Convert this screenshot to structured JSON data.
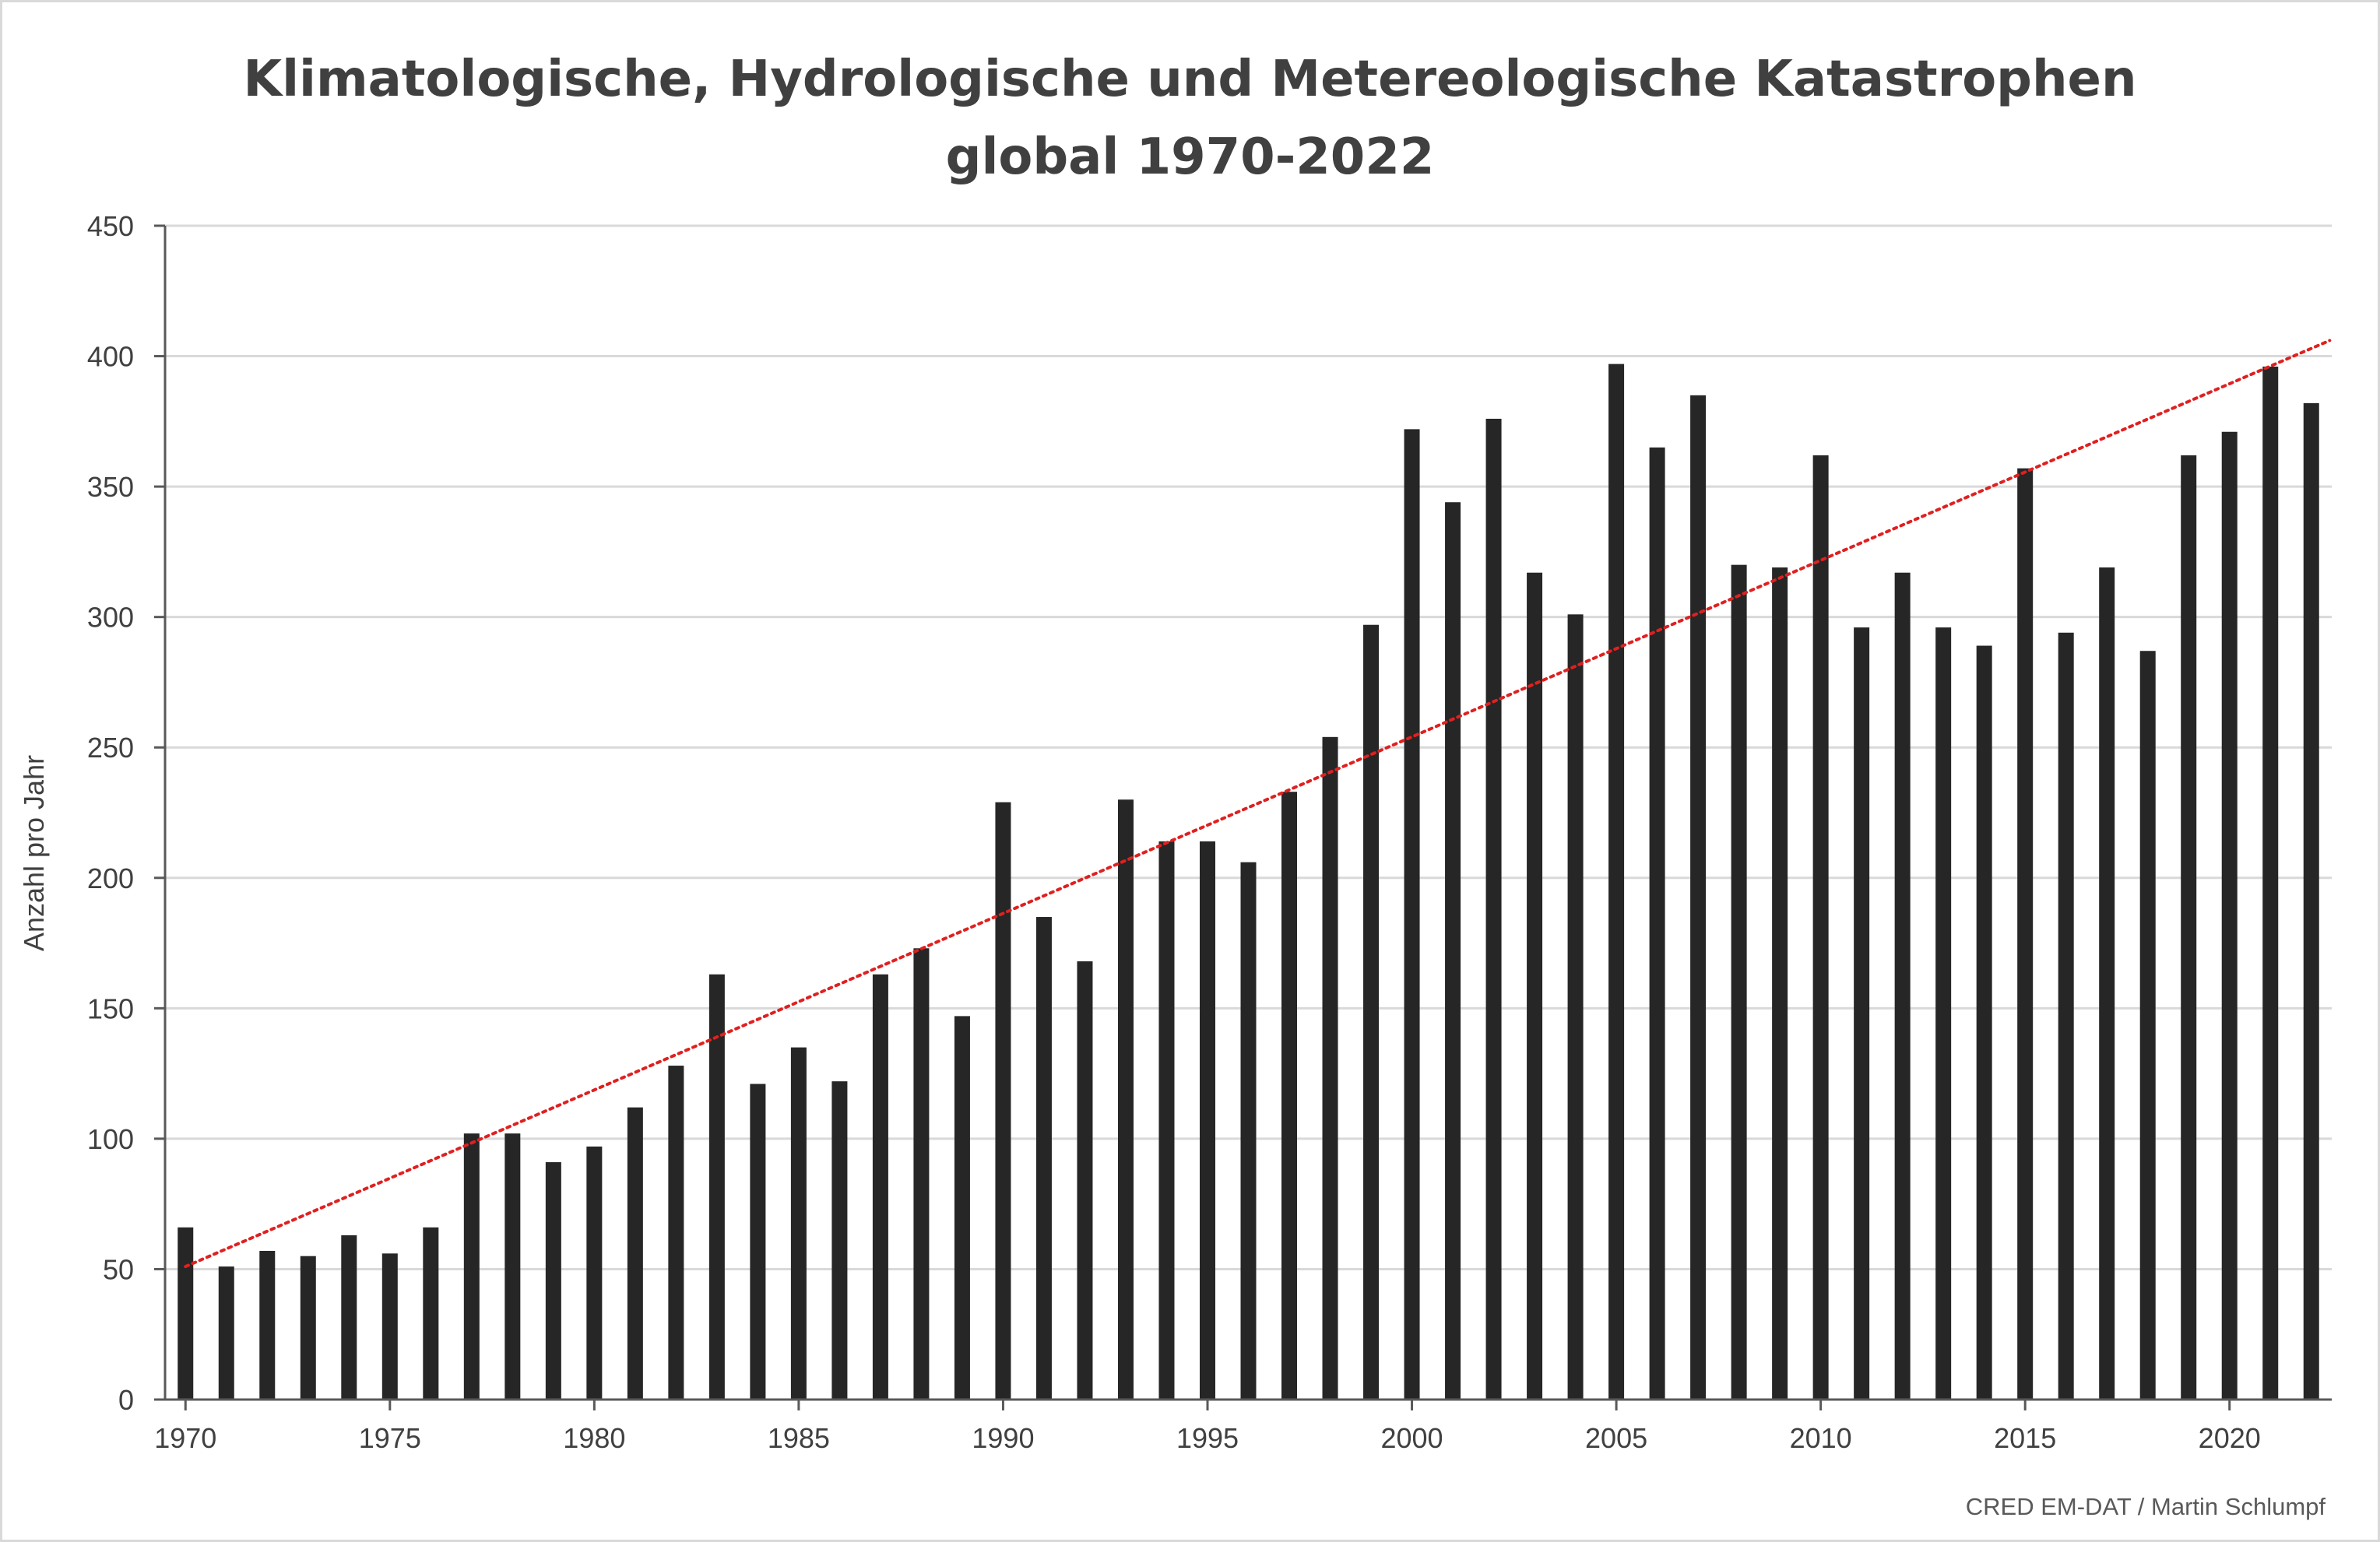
{
  "chart_data": {
    "type": "bar",
    "title": "Klimatologische, Hydrologische und Metereologische Katastrophen",
    "subtitle": "global 1970-2022",
    "ylabel": "Anzahl pro Jahr",
    "xlabel": "",
    "ylim": [
      0,
      450
    ],
    "yticks": [
      0,
      50,
      100,
      150,
      200,
      250,
      300,
      350,
      400,
      450
    ],
    "xticks": [
      1970,
      1975,
      1980,
      1985,
      1990,
      1995,
      2000,
      2005,
      2010,
      2015,
      2020
    ],
    "grid": true,
    "legend": "none",
    "bar_color": "#262626",
    "trendline": {
      "style": "dotted",
      "color": "#e02020",
      "start": [
        1970,
        51
      ],
      "end": [
        2022,
        406
      ]
    },
    "categories": [
      1970,
      1971,
      1972,
      1973,
      1974,
      1975,
      1976,
      1977,
      1978,
      1979,
      1980,
      1981,
      1982,
      1983,
      1984,
      1985,
      1986,
      1987,
      1988,
      1989,
      1990,
      1991,
      1992,
      1993,
      1994,
      1995,
      1996,
      1997,
      1998,
      1999,
      2000,
      2001,
      2002,
      2003,
      2004,
      2005,
      2006,
      2007,
      2008,
      2009,
      2010,
      2011,
      2012,
      2013,
      2014,
      2015,
      2016,
      2017,
      2018,
      2019,
      2020,
      2021,
      2022
    ],
    "values": [
      66,
      51,
      57,
      55,
      63,
      56,
      66,
      102,
      102,
      91,
      97,
      112,
      128,
      163,
      121,
      135,
      122,
      163,
      173,
      147,
      229,
      185,
      168,
      230,
      214,
      214,
      206,
      233,
      254,
      297,
      372,
      344,
      376,
      317,
      301,
      397,
      365,
      385,
      320,
      319,
      362,
      296,
      317,
      296,
      289,
      357,
      294,
      319,
      287,
      362,
      371,
      396,
      382
    ]
  },
  "source": "CRED EM-DAT / Martin Schlumpf"
}
